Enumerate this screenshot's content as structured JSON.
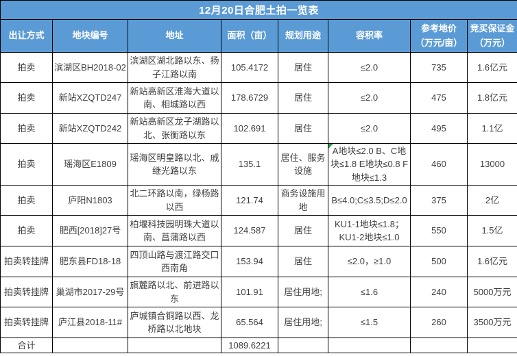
{
  "title": "12月20日合肥土拍一览表",
  "colors": {
    "header_bg": "#5b9bd5",
    "header_text": "#ffffff",
    "body_text": "#3f3f3f",
    "border": "#000000",
    "flag_green": "#2f9e4f"
  },
  "table": {
    "columns": [
      "出让方式",
      "地块编号",
      "地址",
      "面积（亩）",
      "规划用途",
      "容积率",
      "参考地价\n（万元/亩）",
      "竞买保证金\n（万元）"
    ],
    "rows": [
      {
        "cells": [
          "拍卖",
          "滨湖区BH2018-02",
          "滨湖区湖北路以东、扬子江路以南",
          "105.4172",
          "居住",
          "≤2.0",
          "735",
          "1.6亿元"
        ],
        "far_flag": false
      },
      {
        "cells": [
          "拍卖",
          "新站XZQTD247",
          "新站高新区淮海大道以南、相城路以西",
          "178.6729",
          "居住",
          "≤2.0",
          "475",
          "1.8亿元"
        ],
        "far_flag": false
      },
      {
        "cells": [
          "拍卖",
          "新站XZQTD242",
          "新站高新区龙子湖路以北、张衡路以东",
          "102.691",
          "居住",
          "≤2.0",
          "495",
          "1.1亿"
        ],
        "far_flag": false
      },
      {
        "cells": [
          "拍卖",
          "瑶海区E1809",
          "瑶海区明皇路以北、戚继光路以东",
          "135.1",
          "居住、服务设施",
          "A地块≤2.0 B、C地块≤1.8 E地块≤0.8 F地块≤1.3",
          "460",
          "13000"
        ],
        "far_flag": true
      },
      {
        "cells": [
          "拍卖",
          "庐阳N1803",
          "北二环路以南，绿杨路以西",
          "121.74",
          "商务设施用地",
          "B≤4.0;C≤3.5;D≤2.0",
          "375",
          "2亿"
        ],
        "far_flag": false
      },
      {
        "cells": [
          "拍卖",
          "肥西[2018]27号",
          "柏堰科技园明珠大道以南、菖蒲路以西",
          "124.587",
          "居住",
          "KU1-1地块≤1.8；KU1-2地块≤1.0",
          "550",
          "1.5亿"
        ],
        "far_flag": false
      },
      {
        "cells": [
          "拍卖转挂牌",
          "肥东县FD18-18",
          "四顶山路与渡江路交口西南角",
          "153.94",
          "居住",
          "≤2.0，≥1.0",
          "500",
          "1.6亿元"
        ],
        "far_flag": false
      },
      {
        "cells": [
          "拍卖转挂牌",
          "巢湖市2017-29号",
          "旗麓路以北、前进路以东",
          "101.91",
          "居住用地;",
          "≤1.6",
          "240",
          "5000万元"
        ],
        "far_flag": false
      },
      {
        "cells": [
          "拍卖转挂牌",
          "庐江县2018-11#",
          "庐城镇合铜路以西、龙桥路以北地块",
          "65.564",
          "居住用地;",
          "≤1.5",
          "260",
          "3500万元"
        ],
        "far_flag": false
      }
    ],
    "total_row": {
      "cells": [
        "合计",
        "",
        "",
        "1089.6221",
        "",
        "",
        "",
        ""
      ]
    }
  }
}
